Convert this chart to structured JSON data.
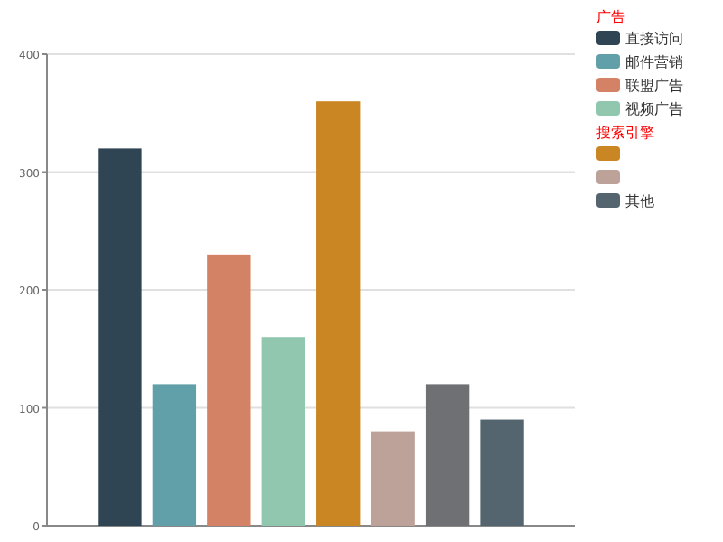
{
  "chart_data": {
    "type": "bar",
    "categories": [
      null,
      null,
      null,
      null,
      null,
      null,
      null,
      null
    ],
    "series": [
      {
        "name": "直接访问",
        "color": "#2f4554",
        "values": [
          320,
          null,
          null,
          null,
          null,
          null,
          null,
          null
        ]
      },
      {
        "name": "邮件营销",
        "color": "#61a0a8",
        "values": [
          null,
          120,
          null,
          null,
          null,
          null,
          null,
          null
        ]
      },
      {
        "name": "联盟广告",
        "color": "#d48265",
        "values": [
          null,
          null,
          230,
          null,
          null,
          null,
          null,
          null
        ]
      },
      {
        "name": "视频广告",
        "color": "#91c7ae",
        "values": [
          null,
          null,
          null,
          160,
          null,
          null,
          null,
          null
        ]
      },
      {
        "color": "#ca8622",
        "values": [
          null,
          null,
          null,
          null,
          360,
          null,
          null,
          null
        ]
      },
      {
        "color": "#bda29a",
        "values": [
          null,
          null,
          null,
          null,
          null,
          80,
          null,
          null
        ]
      },
      {
        "color": "#6e7074",
        "values": [
          null,
          null,
          null,
          null,
          null,
          null,
          120,
          null
        ]
      },
      {
        "name": "其他",
        "color": "#546570",
        "values": [
          null,
          null,
          null,
          null,
          null,
          null,
          null,
          90
        ]
      }
    ],
    "stacked": true,
    "ylim": [
      0,
      400
    ],
    "yticks": [
      0,
      100,
      200,
      300,
      400
    ],
    "grid": "y",
    "legend": "right",
    "tick_labels": "y",
    "annotations": [
      "广告",
      "搜索引擎"
    ]
  }
}
